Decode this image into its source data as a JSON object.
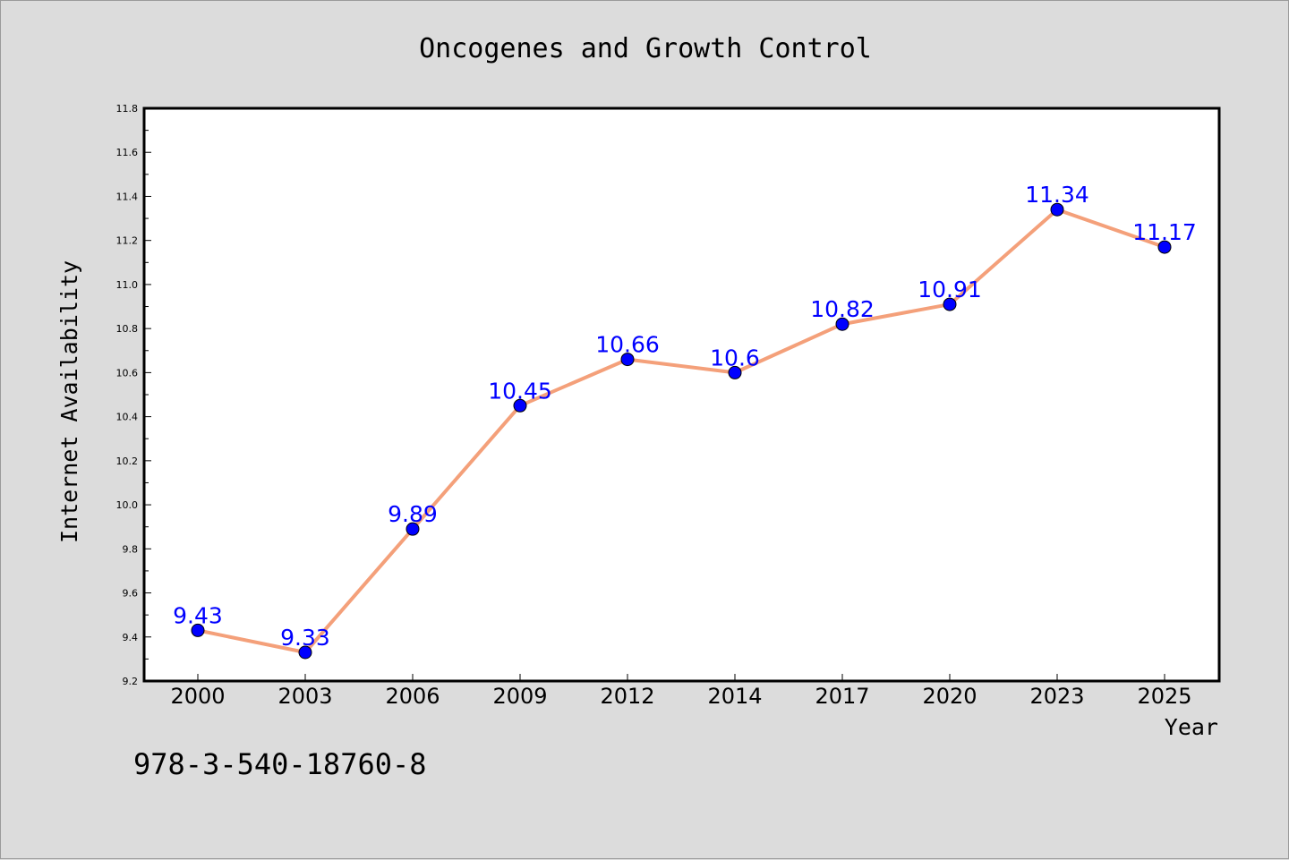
{
  "chart_data": {
    "type": "line",
    "title": "Oncogenes and Growth Control",
    "xlabel": "Year",
    "ylabel": "Internet Availability",
    "categories": [
      "2000",
      "2003",
      "2006",
      "2009",
      "2012",
      "2014",
      "2017",
      "2020",
      "2023",
      "2025"
    ],
    "series": [
      {
        "values": [
          9.43,
          9.33,
          9.89,
          10.45,
          10.66,
          10.6,
          10.82,
          10.91,
          11.34,
          11.17
        ],
        "labels": [
          "9.43",
          "9.33",
          "9.89",
          "10.45",
          "10.66",
          "10.6",
          "10.82",
          "10.91",
          "11.34",
          "11.17"
        ],
        "line_color": "#f4a07a",
        "marker_color": "#0000ff"
      }
    ],
    "ylim": [
      9.2,
      11.8
    ],
    "yticks": [
      "9.2",
      "9.4",
      "9.6",
      "9.8",
      "10.0",
      "10.2",
      "10.4",
      "10.6",
      "10.8",
      "11.0",
      "11.2",
      "11.4",
      "11.6",
      "11.8"
    ],
    "grid": false,
    "legend": "none"
  },
  "footer_text": "978-3-540-18760-8",
  "colors": {
    "background": "#dcdcdc",
    "plot_background": "#ffffff",
    "label_color": "#0000ff"
  }
}
